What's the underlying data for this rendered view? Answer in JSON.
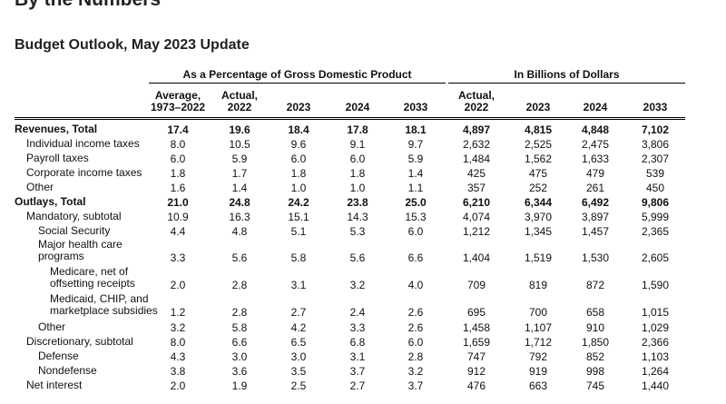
{
  "page": {
    "heading": "By the Numbers",
    "subheading": "Budget Outlook, May 2023 Update"
  },
  "table": {
    "group_pct": "As a Percentage of Gross Domestic Product",
    "group_dollars": "In Billions of Dollars",
    "columns": [
      "Average,\n1973–2022",
      "Actual,\n2022",
      "2023",
      "2024",
      "2033",
      "Actual,\n2022",
      "2023",
      "2024",
      "2033"
    ],
    "rows": [
      {
        "label": "Revenues, Total",
        "bold": true,
        "indent": 0,
        "values": [
          "17.4",
          "19.6",
          "18.4",
          "17.8",
          "18.1",
          "4,897",
          "4,815",
          "4,848",
          "7,102"
        ]
      },
      {
        "label": "Individual income taxes",
        "bold": false,
        "indent": 1,
        "values": [
          "8.0",
          "10.5",
          "9.6",
          "9.1",
          "9.7",
          "2,632",
          "2,525",
          "2,475",
          "3,806"
        ]
      },
      {
        "label": "Payroll taxes",
        "bold": false,
        "indent": 1,
        "values": [
          "6.0",
          "5.9",
          "6.0",
          "6.0",
          "5.9",
          "1,484",
          "1,562",
          "1,633",
          "2,307"
        ]
      },
      {
        "label": "Corporate income taxes",
        "bold": false,
        "indent": 1,
        "values": [
          "1.8",
          "1.7",
          "1.8",
          "1.8",
          "1.4",
          "425",
          "475",
          "479",
          "539"
        ]
      },
      {
        "label": "Other",
        "bold": false,
        "indent": 1,
        "values": [
          "1.6",
          "1.4",
          "1.0",
          "1.0",
          "1.1",
          "357",
          "252",
          "261",
          "450"
        ]
      },
      {
        "label": "Outlays, Total",
        "bold": true,
        "indent": 0,
        "values": [
          "21.0",
          "24.8",
          "24.2",
          "23.8",
          "25.0",
          "6,210",
          "6,344",
          "6,492",
          "9,806"
        ]
      },
      {
        "label": "Mandatory, subtotal",
        "bold": false,
        "indent": 1,
        "values": [
          "10.9",
          "16.3",
          "15.1",
          "14.3",
          "15.3",
          "4,074",
          "3,970",
          "3,897",
          "5,999"
        ]
      },
      {
        "label": "Social Security",
        "bold": false,
        "indent": 2,
        "values": [
          "4.4",
          "4.8",
          "5.1",
          "5.3",
          "6.0",
          "1,212",
          "1,345",
          "1,457",
          "2,365"
        ]
      },
      {
        "label": "Major health care\nprograms",
        "bold": false,
        "indent": 2,
        "values": [
          "3.3",
          "5.6",
          "5.8",
          "5.6",
          "6.6",
          "1,404",
          "1,519",
          "1,530",
          "2,605"
        ]
      },
      {
        "label": "Medicare, net of\noffsetting receipts",
        "bold": false,
        "indent": 3,
        "values": [
          "2.0",
          "2.8",
          "3.1",
          "3.2",
          "4.0",
          "709",
          "819",
          "872",
          "1,590"
        ]
      },
      {
        "label": "Medicaid, CHIP, and\nmarketplace subsidies",
        "bold": false,
        "indent": 3,
        "values": [
          "1.2",
          "2.8",
          "2.7",
          "2.4",
          "2.6",
          "695",
          "700",
          "658",
          "1,015"
        ]
      },
      {
        "label": "Other",
        "bold": false,
        "indent": 2,
        "values": [
          "3.2",
          "5.8",
          "4.2",
          "3.3",
          "2.6",
          "1,458",
          "1,107",
          "910",
          "1,029"
        ]
      },
      {
        "label": "Discretionary, subtotal",
        "bold": false,
        "indent": 1,
        "values": [
          "8.0",
          "6.6",
          "6.5",
          "6.8",
          "6.0",
          "1,659",
          "1,712",
          "1,850",
          "2,366"
        ]
      },
      {
        "label": "Defense",
        "bold": false,
        "indent": 2,
        "values": [
          "4.3",
          "3.0",
          "3.0",
          "3.1",
          "2.8",
          "747",
          "792",
          "852",
          "1,103"
        ]
      },
      {
        "label": "Nondefense",
        "bold": false,
        "indent": 2,
        "values": [
          "3.8",
          "3.6",
          "3.5",
          "3.7",
          "3.2",
          "912",
          "919",
          "998",
          "1,264"
        ]
      },
      {
        "label": "Net interest",
        "bold": false,
        "indent": 1,
        "values": [
          "2.0",
          "1.9",
          "2.5",
          "2.7",
          "3.7",
          "476",
          "663",
          "745",
          "1,440"
        ]
      }
    ]
  }
}
